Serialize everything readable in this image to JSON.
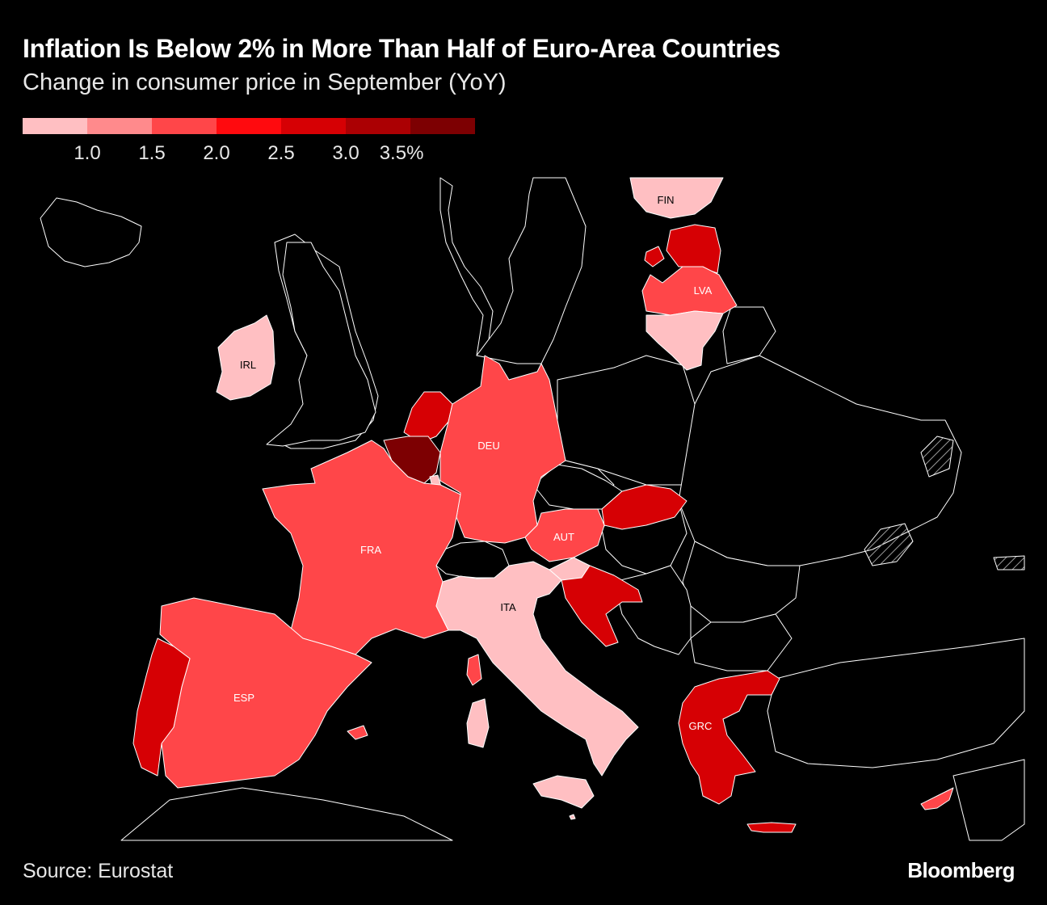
{
  "header": {
    "title": "Inflation Is Below 2% in More Than Half of Euro-Area Countries",
    "subtitle": "Change in consumer price in September (YoY)"
  },
  "legend": {
    "colors": [
      "#ffbfc2",
      "#ff8a8c",
      "#ff4649",
      "#ff0a0e",
      "#d60004",
      "#ab0003",
      "#7d0002"
    ],
    "ticks": [
      "1.0",
      "1.5",
      "2.0",
      "2.5",
      "3.0",
      "3.5%"
    ]
  },
  "map": {
    "colors": {
      "background": "#000000",
      "outline": "#ffffff",
      "non_euro": "#000000"
    },
    "country_labels": {
      "fin": "FIN",
      "lva": "LVA",
      "irl": "IRL",
      "deu": "DEU",
      "fra": "FRA",
      "aut": "AUT",
      "ita": "ITA",
      "esp": "ESP",
      "grc": "GRC"
    }
  },
  "footer": {
    "source": "Source: Eurostat",
    "brand": "Bloomberg"
  }
}
